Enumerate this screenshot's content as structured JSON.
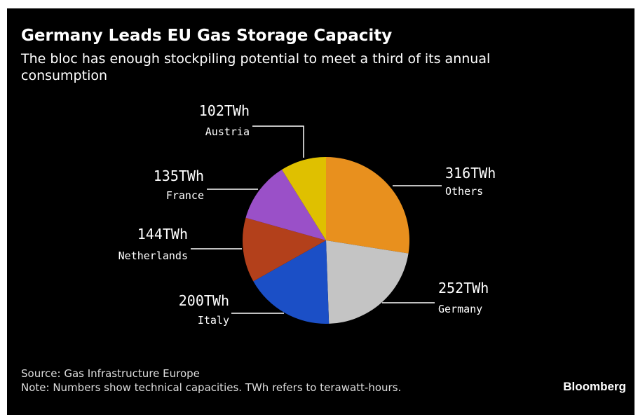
{
  "chart_data": {
    "type": "pie",
    "title": "Germany Leads EU Gas Storage Capacity",
    "subtitle": "The bloc has enough stockpiling potential to meet a third of its annual consumption",
    "categories": [
      "Others",
      "Germany",
      "Italy",
      "Netherlands",
      "France",
      "Austria"
    ],
    "values": [
      316,
      252,
      200,
      144,
      135,
      102
    ],
    "value_labels": [
      "316TWh",
      "252TWh",
      "200TWh",
      "144TWh",
      "135TWh",
      "102TWh"
    ],
    "colors": [
      "#e8901e",
      "#c4c4c4",
      "#1b4fc6",
      "#b3401b",
      "#9a50c8",
      "#dfc000"
    ],
    "source": "Source: Gas Infrastructure Europe",
    "note": "Note: Numbers show technical capacities. TWh refers to terawatt-hours.",
    "brand": "Bloomberg"
  }
}
